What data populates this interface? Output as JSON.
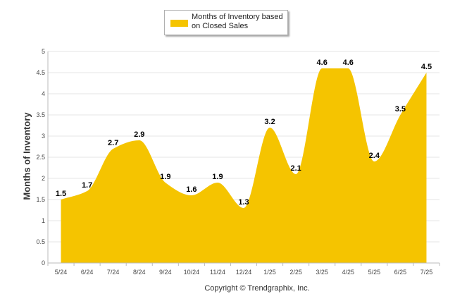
{
  "chart_data": {
    "type": "area",
    "categories": [
      "5/24",
      "6/24",
      "7/24",
      "8/24",
      "9/24",
      "10/24",
      "11/24",
      "12/24",
      "1/25",
      "2/25",
      "3/25",
      "4/25",
      "5/25",
      "6/25",
      "7/25"
    ],
    "series": [
      {
        "name": "Months of Inventory based on Closed Sales",
        "values": [
          1.5,
          1.7,
          2.7,
          2.9,
          1.9,
          1.6,
          1.9,
          1.3,
          3.2,
          2.1,
          4.6,
          4.6,
          2.4,
          3.5,
          4.5
        ],
        "value_labels": [
          "1.5",
          "1.7",
          "2.7",
          "2.9",
          "1.9",
          "1.6",
          "1.9",
          "1.3",
          "3.2",
          "2.1",
          "4.6",
          "4.6",
          "2.4",
          "3.5",
          "4.5"
        ]
      }
    ],
    "ylabel": "Months of Inventory",
    "xlabel": "",
    "ylim": [
      0,
      5
    ],
    "yticks": [
      "0",
      "0.5",
      "1",
      "1.5",
      "2",
      "2.5",
      "3",
      "3.5",
      "4",
      "4.5",
      "5"
    ],
    "grid": true,
    "legend_position": "top-center",
    "smooth": true,
    "colors": {
      "fill": "#F5C400",
      "grid": "#e6e6e6",
      "axis": "#bbbbbb"
    }
  },
  "footer": {
    "copyright": "Copyright © Trendgraphix, Inc."
  }
}
